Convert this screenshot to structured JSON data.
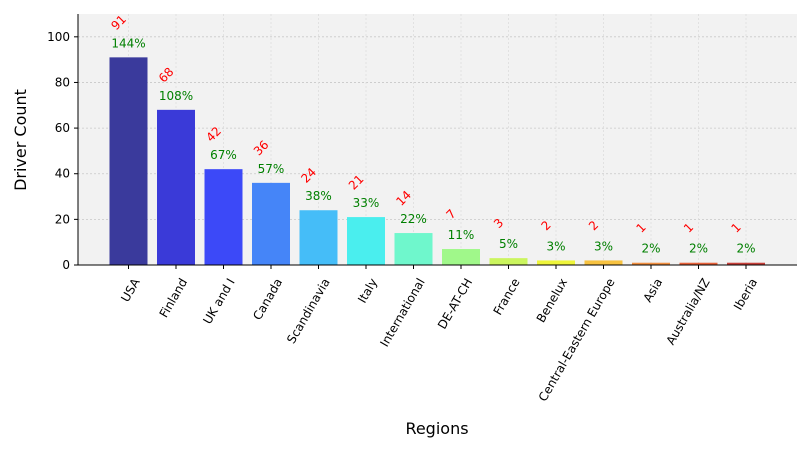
{
  "chart_data": {
    "type": "bar",
    "xlabel": "Regions",
    "ylabel": "Driver Count",
    "ylim": [
      0,
      110
    ],
    "yticks": [
      0,
      20,
      40,
      60,
      80,
      100
    ],
    "grid": true,
    "categories": [
      "USA",
      "Finland",
      "UK and I",
      "Canada",
      "Scandinavia",
      "Italy",
      "International",
      "DE-AT-CH",
      "France",
      "Benelux",
      "Central-Eastern Europe",
      "Asia",
      "Australia/NZ",
      "Iberia"
    ],
    "values": [
      91,
      68,
      42,
      36,
      24,
      21,
      14,
      7,
      3,
      2,
      2,
      1,
      1,
      1
    ],
    "value_labels": [
      "91",
      "68",
      "42",
      "36",
      "24",
      "21",
      "14",
      "7",
      "3",
      "2",
      "2",
      "1",
      "1",
      "1"
    ],
    "percent_labels": [
      "144%",
      "108%",
      "67%",
      "57%",
      "38%",
      "33%",
      "22%",
      "11%",
      "5%",
      "3%",
      "3%",
      "2%",
      "2%",
      "2%"
    ],
    "bar_colors": [
      "#3a3a9c",
      "#3a3ad8",
      "#3c49f8",
      "#4585f8",
      "#45bdf8",
      "#4aeeee",
      "#6ff7cc",
      "#a0f88a",
      "#cbf55e",
      "#eef53a",
      "#f7c240",
      "#f28f40",
      "#e8623a",
      "#c8403a"
    ],
    "value_label_color": "#ff0000",
    "percent_label_color": "#008000"
  }
}
